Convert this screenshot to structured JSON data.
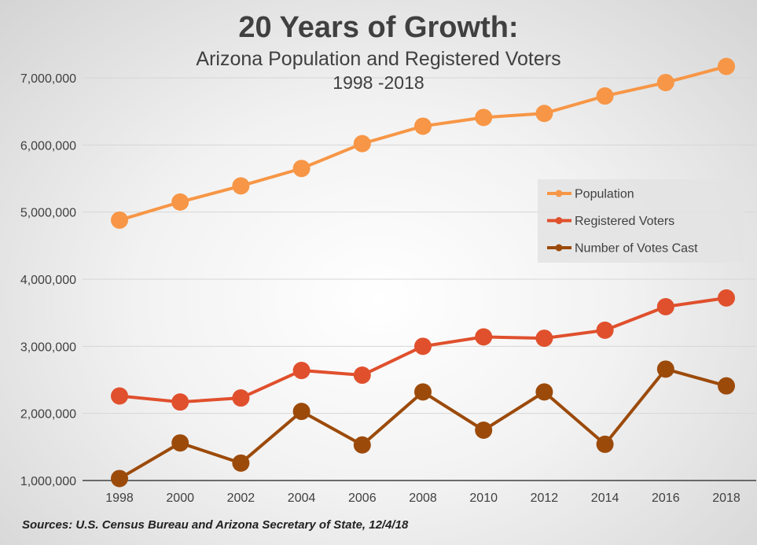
{
  "chart_data": {
    "type": "line",
    "title": "20 Years of Growth:",
    "subtitle": "Arizona Population and Registered Voters",
    "period": "1998 -2018",
    "x": [
      "1998",
      "2000",
      "2002",
      "2004",
      "2006",
      "2008",
      "2010",
      "2012",
      "2014",
      "2016",
      "2018"
    ],
    "ylim": [
      1000000,
      7500000
    ],
    "yticks": [
      1000000,
      2000000,
      3000000,
      4000000,
      5000000,
      6000000,
      7000000
    ],
    "ytick_labels": [
      "1,000,000",
      "2,000,000",
      "3,000,000",
      "4,000,000",
      "5,000,000",
      "6,000,000",
      "7,000,000"
    ],
    "grid": true,
    "legend_position": "right",
    "series": [
      {
        "name": "Population",
        "color": "#F79646",
        "values": [
          4880000,
          5150000,
          5390000,
          5650000,
          6020000,
          6280000,
          6410000,
          6470000,
          6730000,
          6930000,
          7170000
        ]
      },
      {
        "name": "Registered Voters",
        "color": "#E0502D",
        "values": [
          2260000,
          2170000,
          2230000,
          2640000,
          2570000,
          3000000,
          3140000,
          3120000,
          3240000,
          3590000,
          3720000
        ]
      },
      {
        "name": "Number of Votes Cast",
        "color": "#9C4A0A",
        "values": [
          1030000,
          1560000,
          1260000,
          2030000,
          1530000,
          2320000,
          1750000,
          2320000,
          1540000,
          2660000,
          2410000
        ]
      }
    ],
    "source": "Sources:  U.S. Census Bureau and Arizona Secretary of State, 12/4/18"
  }
}
